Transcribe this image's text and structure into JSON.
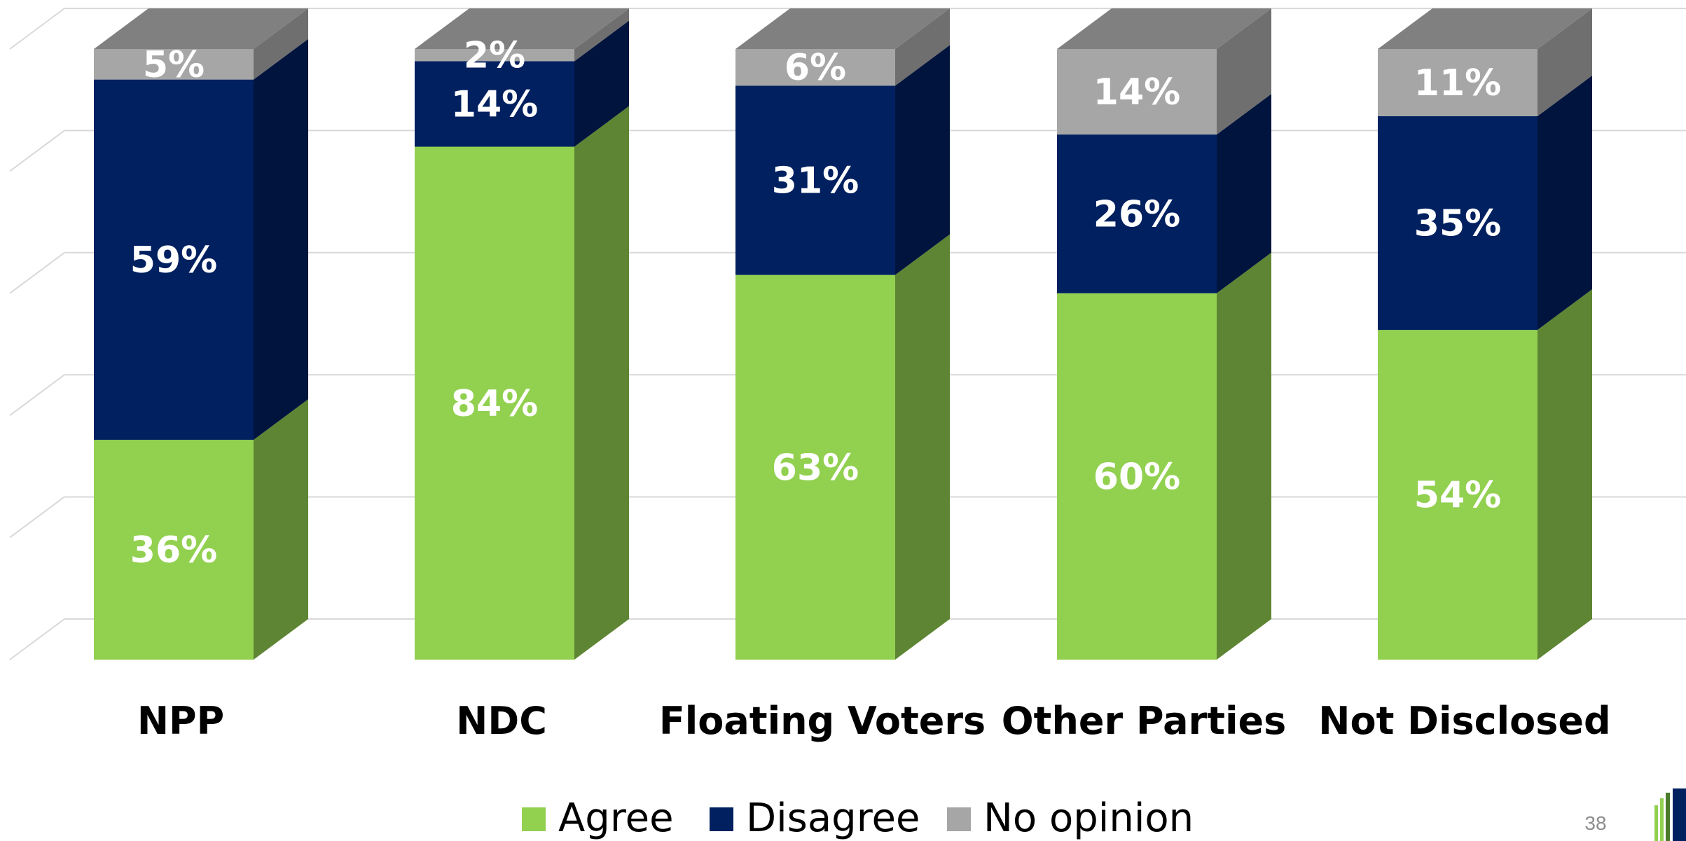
{
  "chart_data": {
    "type": "bar",
    "stacked": true,
    "three_d": true,
    "title": "",
    "xlabel": "",
    "ylabel": "",
    "ylim": [
      0,
      100
    ],
    "grid": true,
    "legend_position": "bottom",
    "categories": [
      "NPP",
      "NDC",
      "Floating Voters",
      "Other Parties",
      "Not Disclosed"
    ],
    "series": [
      {
        "name": "Agree",
        "values": [
          36,
          84,
          63,
          60,
          54
        ],
        "labels": [
          "36%",
          "84%",
          "63%",
          "60%",
          "54%"
        ],
        "color": "#92d050",
        "side_color": "#5e8533"
      },
      {
        "name": "Disagree",
        "values": [
          59,
          14,
          31,
          26,
          35
        ],
        "labels": [
          "59%",
          "14%",
          "31%",
          "26%",
          "35%"
        ],
        "color": "#002060",
        "side_color": "#00143d"
      },
      {
        "name": "No opinion",
        "values": [
          5,
          2,
          6,
          14,
          11
        ],
        "labels": [
          "5%",
          "2%",
          "6%",
          "14%",
          "11%"
        ],
        "color": "#a6a6a6",
        "side_color": "#6f6f6f"
      }
    ],
    "top_color": "#808080"
  },
  "page_number": "38"
}
